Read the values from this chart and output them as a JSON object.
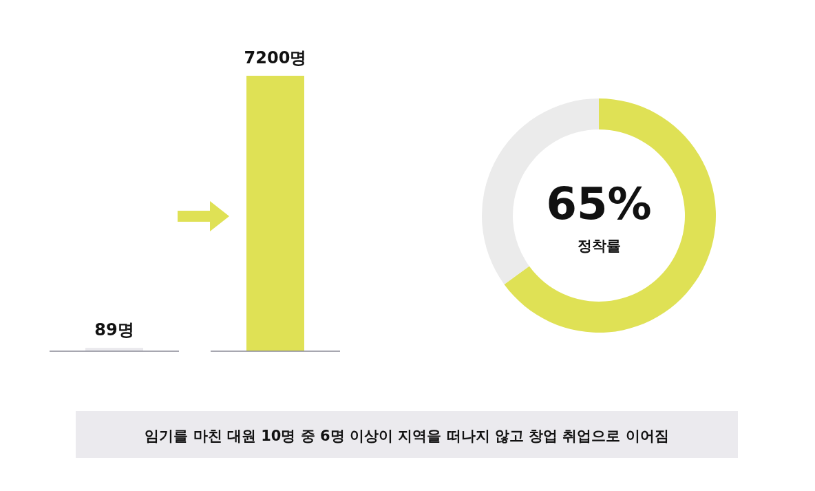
{
  "chart_data": [
    {
      "type": "bar",
      "categories": [
        null,
        null
      ],
      "values": [
        89,
        7200
      ],
      "colors": [
        "#ebeaee",
        "#dfe155"
      ],
      "value_labels": [
        "89명",
        "7200명"
      ],
      "annotations": [
        "임기를 마친 대원 10명 중 6명 이상이 지역을 떠나지 않고 창업 취업으로 이어짐"
      ]
    },
    {
      "type": "donut",
      "categories": [
        null,
        null
      ],
      "values": [
        65,
        35
      ],
      "colors": [
        "#dfe155",
        "#ebebeb"
      ],
      "annotations": [
        "65%",
        "정착률"
      ]
    }
  ]
}
